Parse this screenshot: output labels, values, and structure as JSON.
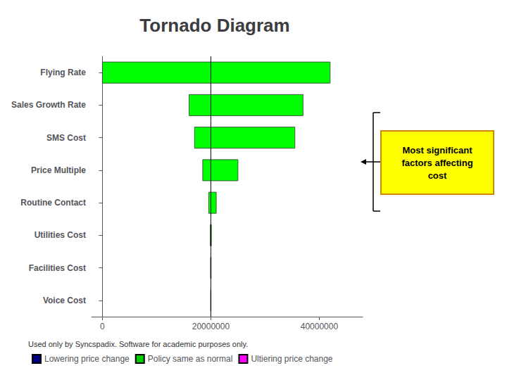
{
  "chart_data": {
    "type": "bar",
    "orientation": "horizontal",
    "title": "Tornado Diagram",
    "categories": [
      "Flying Rate",
      "Sales Growth Rate",
      "SMS Cost",
      "Price Multiple",
      "Routine Contact",
      "Utilities Cost",
      "Facilities Cost",
      "Voice Cost"
    ],
    "low": [
      0,
      16000000,
      17000000,
      18500000,
      19600000,
      19900000,
      19950000,
      19970000
    ],
    "high": [
      42000000,
      37000000,
      35500000,
      25000000,
      21000000,
      20100000,
      20050000,
      20030000
    ],
    "base": 20000000,
    "color": "#00FF00",
    "xlim": [
      -2000000,
      48000000
    ],
    "xticks": [
      0,
      20000000,
      40000000
    ],
    "grid": false,
    "legend": "lower left",
    "legend_items": [
      {
        "name": "Lowering price change",
        "color": "#000080"
      },
      {
        "name": "Policy same as normal",
        "color": "#00CC00"
      },
      {
        "name": "Ultiering price change",
        "color": "#FF00FF"
      }
    ],
    "annotations": [
      "Most significant\nfactors affecting\ncost",
      "Used only by Syncspadix. Software for academic purposes only."
    ]
  }
}
